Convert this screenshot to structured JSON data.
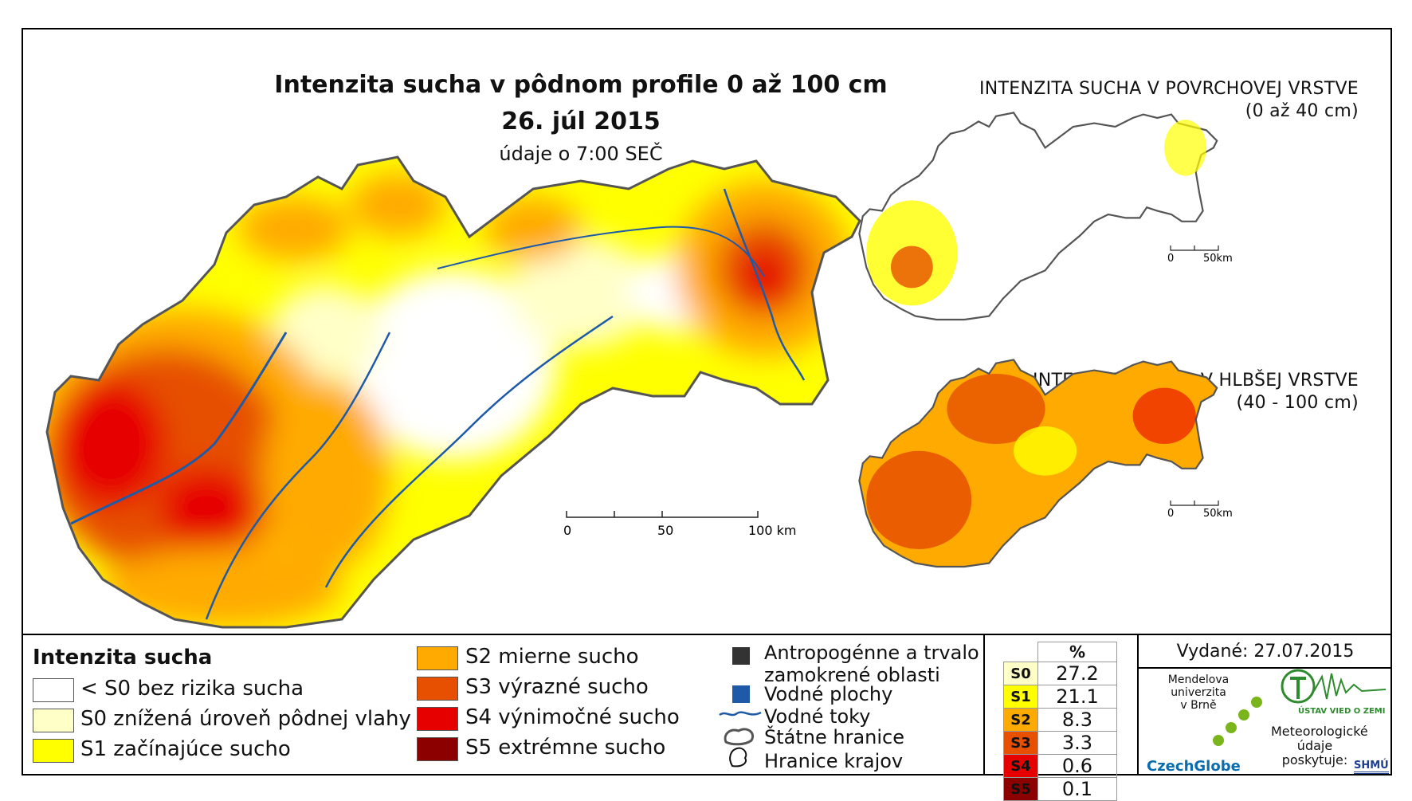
{
  "main": {
    "title": "Intenzita sucha v pôdnom profile 0 až 100 cm",
    "date": "26. júl 2015",
    "note": "údaje o 7:00 SEČ",
    "scale": {
      "t0": "0",
      "t1": "50",
      "t2": "100 km"
    }
  },
  "inset_surface": {
    "title": "INTENZITA SUCHA V POVRCHOVEJ VRSTVE",
    "subtitle": "(0 až 40 cm)",
    "scale": {
      "t0": "0",
      "t1": "50km"
    }
  },
  "inset_deep": {
    "title": "INTENZITA SUCHA V HLBŠEJ VRSTVE",
    "subtitle": "(40 - 100 cm)",
    "scale": {
      "t0": "0",
      "t1": "50km"
    }
  },
  "legend": {
    "title": "Intenzita sucha",
    "classes": [
      {
        "label": "< S0 bez rizika sucha",
        "color": "#ffffff"
      },
      {
        "label": "S0 znížená úroveň pôdnej vlahy",
        "color": "#ffffc8"
      },
      {
        "label": "S1 začínajúce sucho",
        "color": "#ffff00"
      },
      {
        "label": "S2 mierne sucho",
        "color": "#ffaa00"
      },
      {
        "label": "S3 výrazné sucho",
        "color": "#e65000"
      },
      {
        "label": "S4 výnimočné sucho",
        "color": "#e60000"
      },
      {
        "label": "S5 extrémne sucho",
        "color": "#8c0000"
      }
    ],
    "other": {
      "anthro_1": "Antropogénne a trvalo",
      "anthro_2": "zamokrené oblasti",
      "water_bodies": "Vodné plochy",
      "rivers": "Vodné toky",
      "state_border": "Štátne hranice",
      "region_border": "Hranice krajov"
    }
  },
  "percent_table": {
    "header": "%",
    "rows": [
      {
        "key": "S0",
        "value": "27.2",
        "color": "#ffffc8"
      },
      {
        "key": "S1",
        "value": "21.1",
        "color": "#ffff00"
      },
      {
        "key": "S2",
        "value": "8.3",
        "color": "#ffaa00"
      },
      {
        "key": "S3",
        "value": "3.3",
        "color": "#e65000"
      },
      {
        "key": "S4",
        "value": "0.6",
        "color": "#e60000"
      },
      {
        "key": "S5",
        "value": "0.1",
        "color": "#8c0000"
      }
    ]
  },
  "issued": "Vydané: 27.07.2015",
  "logos": {
    "mendel_1": "Mendelova",
    "mendel_2": "univerzita",
    "mendel_3": "v Brně",
    "czechglobe": "CzechGlobe",
    "uvz": "ÚSTAV VIED O ZEMI",
    "meteo_1": "Meteorologické",
    "meteo_2": "údaje",
    "meteo_3": "poskytuje:",
    "shmu": "SHMÚ"
  },
  "colors": {
    "water": "#1e5aa8",
    "anthro": "#333333",
    "border": "#555555"
  }
}
